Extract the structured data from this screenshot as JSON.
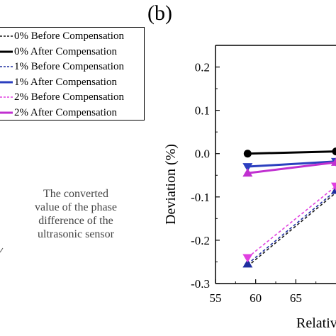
{
  "panel_label": "(b)",
  "annotation": {
    "lines": [
      "The converted",
      "value of the phase",
      "difference of the",
      "ultrasonic sensor"
    ]
  },
  "legend": [
    {
      "label": "0% Before Compensation",
      "color": "#1a1a1a",
      "style": "dashed"
    },
    {
      "label": "0% After Compensation",
      "color": "#000000",
      "style": "solid"
    },
    {
      "label": "1% Before Compensation",
      "color": "#1f2f9f",
      "style": "dashed"
    },
    {
      "label": "1% After Compensation",
      "color": "#2b3fbf",
      "style": "solid"
    },
    {
      "label": "2% Before Compensation",
      "color": "#e040e0",
      "style": "dashed"
    },
    {
      "label": "2% After Compensation",
      "color": "#c030d0",
      "style": "solid"
    }
  ],
  "chart_data": {
    "type": "line",
    "xlabel": "Relativ",
    "ylabel": "Deviation (%)",
    "xlim": [
      55,
      70
    ],
    "ylim": [
      -0.3,
      0.25
    ],
    "xticks": [
      "55",
      "60",
      "65"
    ],
    "yticks": [
      "0.2",
      "0.1",
      "0.0",
      "-0.1",
      "-0.2",
      "-0.3"
    ],
    "ytick_values": [
      0.2,
      0.1,
      0.0,
      -0.1,
      -0.2,
      -0.3
    ],
    "xtick_values": [
      55,
      60,
      65
    ],
    "series": [
      {
        "name": "0% Before Compensation",
        "color": "#1a1a1a",
        "style": "dashed",
        "marker": "none",
        "x": [
          59,
          70
        ],
        "y": [
          -0.26,
          -0.09
        ]
      },
      {
        "name": "0% After Compensation",
        "color": "#000000",
        "style": "solid",
        "marker": "circle",
        "x": [
          59,
          70
        ],
        "y": [
          0.0,
          0.005
        ]
      },
      {
        "name": "1% Before Compensation",
        "color": "#1f2f9f",
        "style": "dashed",
        "marker": "triangle-up",
        "x": [
          59,
          70
        ],
        "y": [
          -0.255,
          -0.085
        ]
      },
      {
        "name": "1% After Compensation",
        "color": "#2b3fbf",
        "style": "solid",
        "marker": "triangle-down",
        "x": [
          59,
          70
        ],
        "y": [
          -0.03,
          -0.018
        ]
      },
      {
        "name": "2% Before Compensation",
        "color": "#e040e0",
        "style": "dashed",
        "marker": "triangle-down",
        "x": [
          59,
          70
        ],
        "y": [
          -0.24,
          -0.075
        ]
      },
      {
        "name": "2% After Compensation",
        "color": "#c030d0",
        "style": "solid",
        "marker": "triangle-up",
        "x": [
          59,
          70
        ],
        "y": [
          -0.045,
          -0.02
        ]
      }
    ]
  }
}
